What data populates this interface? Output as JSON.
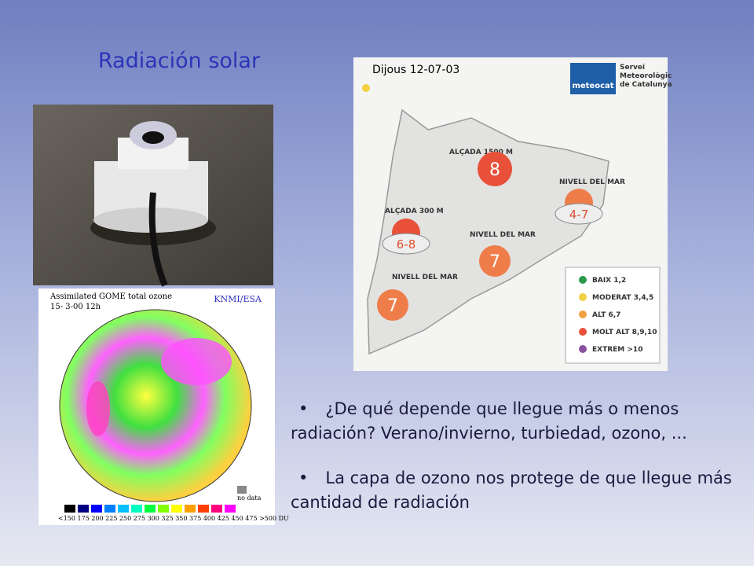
{
  "title": "Radiación solar",
  "map": {
    "date": "Dijous 12-07-03",
    "logo": "meteocat",
    "agency": [
      "Servei",
      "Meteorològic",
      "de Catalunya"
    ],
    "regions": [
      {
        "label": "ALÇADA 1500 M",
        "index": "8"
      },
      {
        "label": "NIVELL DEL MAR",
        "index": "4-7"
      },
      {
        "label": "ALÇADA 300 M",
        "index": "6-8"
      },
      {
        "label": "NIVELL DEL MAR",
        "index": "7"
      },
      {
        "label": "NIVELL DEL MAR",
        "index": "7"
      }
    ],
    "legend": [
      "BAIX 1,2",
      "MODERAT 3,4,5",
      "ALT 6,7",
      "MOLT ALT 8,9,10",
      "EXTREM >10"
    ]
  },
  "ozone_map": {
    "title": "Assimilated GOME total ozone",
    "time": "15- 3-00 12h",
    "credit": "KNMI/ESA",
    "no_data": "no data",
    "scale": "<150 175 200 225 250 275 300 325 350 375 400 425 450 475 >500 DU"
  },
  "bullets": [
    "¿De qué depende que llegue más o menos radiación? Verano/invierno, turbiedad, ozono, ...",
    "La capa de ozono nos protege de que llegue más cantidad de radiación"
  ]
}
